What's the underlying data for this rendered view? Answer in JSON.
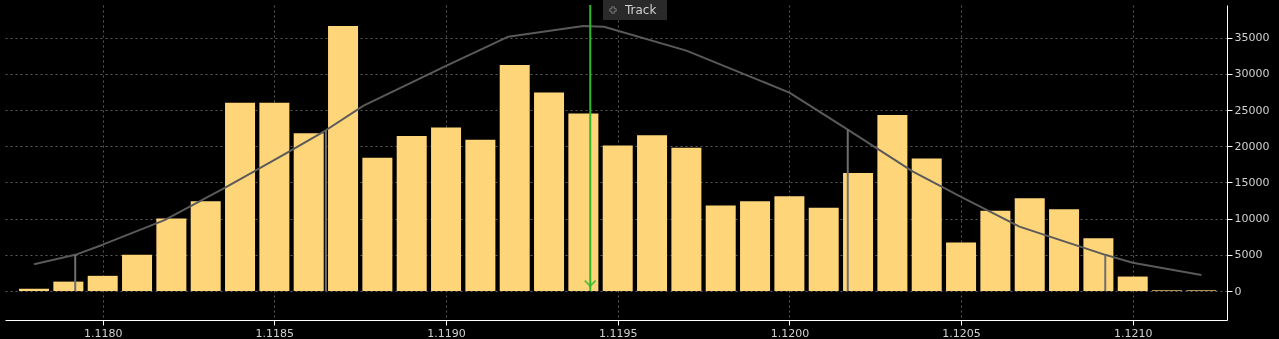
{
  "chart_data": {
    "type": "bar",
    "series": [
      {
        "color": "#ffd57a",
        "x": [
          1.1178,
          1.1179,
          1.118,
          1.1181,
          1.1182,
          1.1183,
          1.1184,
          1.1185,
          1.1186,
          1.1187,
          1.1188,
          1.1189,
          1.119,
          1.1191,
          1.1192,
          1.1193,
          1.1194,
          1.1195,
          1.1196,
          1.1197,
          1.1198,
          1.1199,
          1.12,
          1.1201,
          1.1202,
          1.1203,
          1.1204,
          1.1205,
          1.1206,
          1.1207,
          1.1208,
          1.1209,
          1.121,
          1.1211,
          1.1212
        ],
        "values": [
          300,
          1300,
          2100,
          5000,
          10000,
          12400,
          26000,
          26000,
          21800,
          36600,
          18400,
          21400,
          22600,
          20900,
          31200,
          27400,
          24500,
          20100,
          21500,
          19800,
          11800,
          12400,
          13100,
          11500,
          16300,
          24300,
          18300,
          6700,
          11100,
          12800,
          11300,
          7300,
          2000,
          100,
          100
        ]
      },
      {
        "type": "line",
        "color": "#5a5a5a",
        "x": [
          1.1178,
          1.11792,
          1.118,
          1.11818,
          1.11835,
          1.11853,
          1.11865,
          1.11876,
          1.119,
          1.11918,
          1.1194,
          1.11946,
          1.1197,
          1.12,
          1.12017,
          1.12036,
          1.1205,
          1.12067,
          1.12092,
          1.121,
          1.1212
        ],
        "values": [
          3700,
          5000,
          6400,
          9800,
          14100,
          18900,
          22200,
          25600,
          31100,
          35100,
          36600,
          36500,
          33200,
          27400,
          22300,
          16500,
          13000,
          8900,
          5000,
          3900,
          2200
        ]
      },
      {
        "type": "bar",
        "color": "#6e6e6e",
        "x": [
          1.11792,
          1.11865,
          1.12017,
          1.12092
        ],
        "values": [
          5000,
          22200,
          22300,
          5000
        ]
      }
    ],
    "marker": "none",
    "ref_lines": [
      {
        "axis": "x",
        "value": 1.11942,
        "color": "#2db82d"
      }
    ],
    "annotations": [
      "Track"
    ],
    "xlim": [
      1.11773,
      1.12126
    ],
    "xticks": [
      {
        "value": 1.118,
        "label": "1.1180"
      },
      {
        "value": 1.1185,
        "label": "1.1185"
      },
      {
        "value": 1.119,
        "label": "1.1190"
      },
      {
        "value": 1.1195,
        "label": "1.1195"
      },
      {
        "value": 1.12,
        "label": "1.1200"
      },
      {
        "value": 1.1205,
        "label": "1.1205"
      },
      {
        "value": 1.121,
        "label": "1.1210"
      }
    ],
    "ylim": [
      -4000,
      39500
    ],
    "yticks": [
      0,
      5000,
      10000,
      15000,
      20000,
      25000,
      30000,
      35000
    ],
    "grid": true
  }
}
